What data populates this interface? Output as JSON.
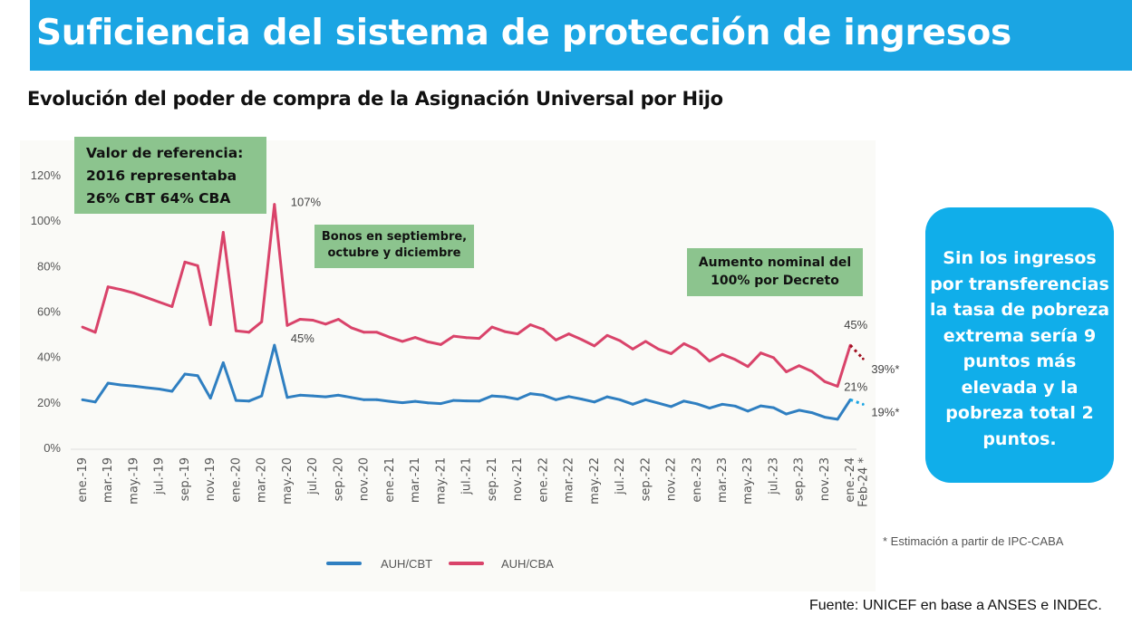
{
  "header": {
    "title": "Suficiencia del sistema de protección de ingresos"
  },
  "subtitle": "Evolución del poder de compra de la Asignación Universal por Hijo",
  "callout": "Sin los ingresos por transferencias la tasa de pobreza extrema sería 9 puntos más elevada y la pobreza total 2 puntos.",
  "note": "* Estimación a partir de IPC-CABA",
  "source": "Fuente: UNICEF en base a ANSES e INDEC.",
  "colors": {
    "title_bar": "#1ba5e3",
    "cbt": "#2f7fc1",
    "cba": "#d9436a",
    "annotation_box": "#8cc48e",
    "callout": "#10aeea",
    "cba_estimate": "#a01020",
    "cbt_estimate": "#1ba5e3"
  },
  "chart_data": {
    "type": "line",
    "title": "",
    "xlabel": "",
    "ylabel": "",
    "ylim": [
      0,
      120
    ],
    "yticks": [
      "0%",
      "20%",
      "40%",
      "60%",
      "80%",
      "100%",
      "120%"
    ],
    "grid": false,
    "legend": "bottom",
    "x": [
      "ene.-19",
      "feb.-19",
      "mar.-19",
      "abr.-19",
      "may.-19",
      "jun.-19",
      "jul.-19",
      "ago.-19",
      "sep.-19",
      "oct.-19",
      "nov.-19",
      "dic.-19",
      "ene.-20",
      "feb.-20",
      "mar.-20",
      "abr.-20",
      "may.-20",
      "jun.-20",
      "jul.-20",
      "ago.-20",
      "sep.-20",
      "oct.-20",
      "nov.-20",
      "dic.-20",
      "ene.-21",
      "feb.-21",
      "mar.-21",
      "abr.-21",
      "may.-21",
      "jun.-21",
      "jul.-21",
      "ago.-21",
      "sep.-21",
      "oct.-21",
      "nov.-21",
      "dic.-21",
      "ene.-22",
      "feb.-22",
      "mar.-22",
      "abr.-22",
      "may.-22",
      "jun.-22",
      "jul.-22",
      "ago.-22",
      "sep.-22",
      "oct.-22",
      "nov.-22",
      "dic.-22",
      "ene.-23",
      "feb.-23",
      "mar.-23",
      "abr.-23",
      "may.-23",
      "jun.-23",
      "jul.-23",
      "ago.-23",
      "sep.-23",
      "oct.-23",
      "nov.-23",
      "dic.-23",
      "ene.-24",
      "Feb-24 *"
    ],
    "xtick_labels": [
      "ene.-19",
      "mar.-19",
      "may.-19",
      "jul.-19",
      "sep.-19",
      "nov.-19",
      "ene.-20",
      "mar.-20",
      "may.-20",
      "jul.-20",
      "sep.-20",
      "nov.-20",
      "ene.-21",
      "mar.-21",
      "may.-21",
      "jul.-21",
      "sep.-21",
      "nov.-21",
      "ene.-22",
      "mar.-22",
      "may.-22",
      "jul.-22",
      "sep.-22",
      "nov.-22",
      "ene.-23",
      "mar.-23",
      "may.-23",
      "jul.-23",
      "sep.-23",
      "nov.-23",
      "ene.-24",
      "Feb-24 *"
    ],
    "series": [
      {
        "name": "AUH/CBT",
        "color": "#2f7fc1",
        "values": [
          21,
          20,
          28.3,
          27.5,
          27,
          26.3,
          25.7,
          24.7,
          32.3,
          31.6,
          21.7,
          37.3,
          20.7,
          20.4,
          22.7,
          45,
          22,
          23,
          22.7,
          22.3,
          23,
          22,
          21,
          21,
          20.3,
          19.7,
          20.3,
          19.6,
          19.3,
          20.7,
          20.5,
          20.4,
          22.7,
          22.3,
          21.3,
          23.7,
          23,
          21,
          22.4,
          21.3,
          20,
          22.3,
          21,
          19,
          21,
          19.5,
          18,
          20.4,
          19.2,
          17.3,
          19,
          18.2,
          16,
          18.3,
          17.5,
          14.7,
          16.4,
          15.3,
          13.3,
          12.4,
          21,
          19
        ],
        "estimated_last": true
      },
      {
        "name": "AUH/CBA",
        "color": "#d9436a",
        "values": [
          53,
          50.7,
          70.7,
          69.5,
          68,
          66,
          64,
          62,
          81.6,
          80,
          54,
          94.7,
          51.3,
          50.7,
          55.3,
          107,
          53.7,
          56.4,
          56,
          54.3,
          56.4,
          52.7,
          50.7,
          50.7,
          48.5,
          46.7,
          48.4,
          46.5,
          45.3,
          49,
          48.3,
          48,
          53,
          51,
          50,
          54,
          52,
          47.3,
          50,
          47.5,
          44.7,
          49.3,
          47,
          43.3,
          46.7,
          43.3,
          41.3,
          45.7,
          43,
          38,
          41,
          38.7,
          35.6,
          41.6,
          39.5,
          33.3,
          36,
          33.5,
          29,
          26.9,
          45,
          39
        ],
        "estimated_last": true
      }
    ],
    "data_labels": [
      {
        "series": "AUH/CBA",
        "x": "abr.-20",
        "text": "107%"
      },
      {
        "series": "AUH/CBT",
        "x": "abr.-20",
        "text": "45%"
      },
      {
        "series": "AUH/CBA",
        "x": "ene.-24",
        "text": "45%"
      },
      {
        "series": "AUH/CBT",
        "x": "ene.-24",
        "text": "21%"
      },
      {
        "series": "AUH/CBA",
        "x": "Feb-24 *",
        "text": "39%*"
      },
      {
        "series": "AUH/CBT",
        "x": "Feb-24 *",
        "text": "19%*"
      }
    ],
    "annotations": [
      "Valor de referencia: 2016 representaba 26% CBT 64% CBA",
      "Bonos en septiembre, octubre y diciembre",
      "Aumento nominal del 100% por Decreto"
    ],
    "annotation_lines": [
      [
        "Valor de referencia:",
        "2016 representaba",
        "26% CBT 64% CBA"
      ],
      [
        "Bonos en septiembre,",
        "octubre y diciembre"
      ],
      [
        "Aumento nominal del",
        "100% por Decreto"
      ]
    ]
  }
}
